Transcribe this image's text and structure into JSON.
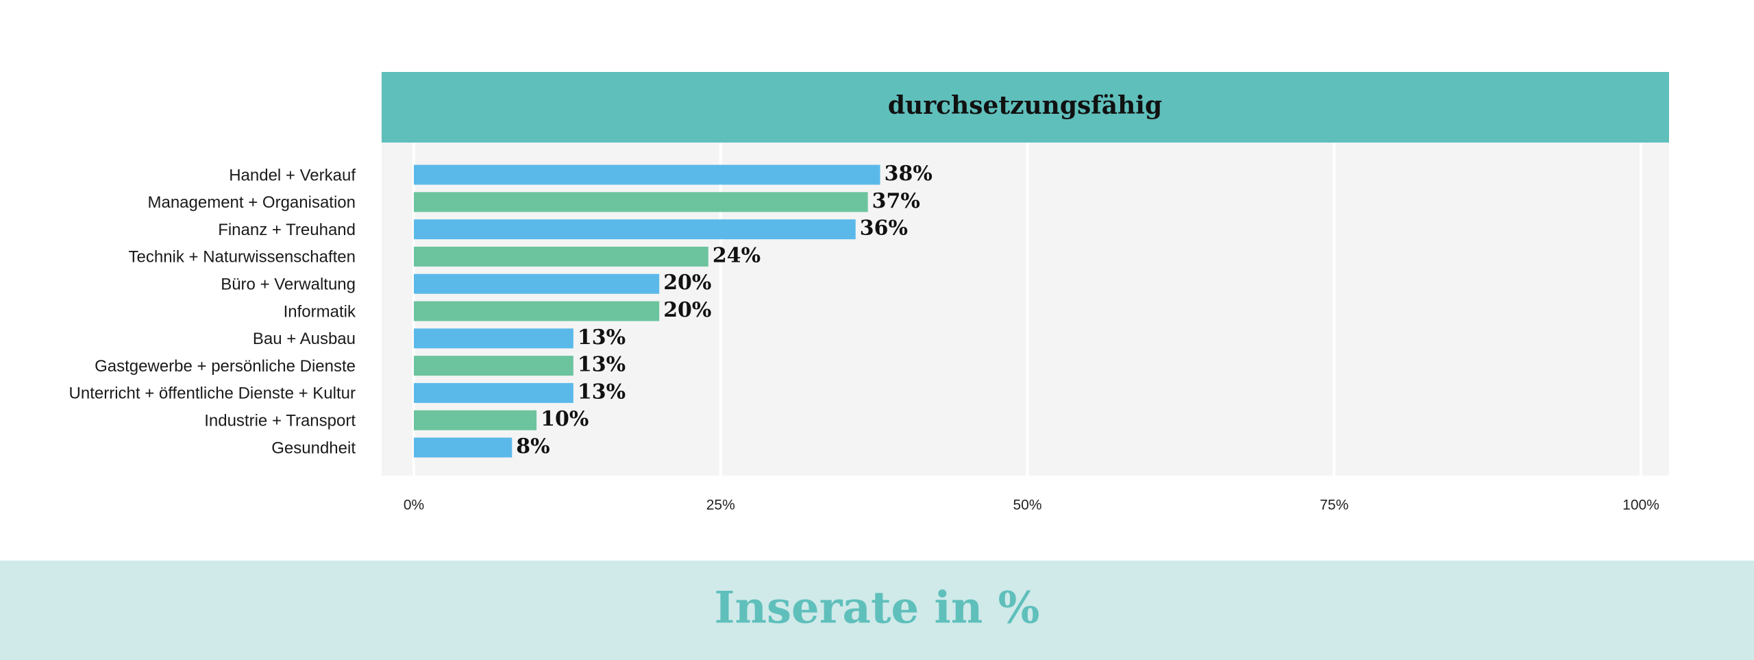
{
  "chart_data": {
    "type": "bar",
    "orientation": "horizontal",
    "title": "durchsetzungsfähig",
    "xlabel": "Inserate in %",
    "categories": [
      "Handel + Verkauf",
      "Management + Organisation",
      "Finanz + Treuhand",
      "Technik + Naturwissenschaften",
      "Büro + Verwaltung",
      "Informatik",
      "Bau + Ausbau",
      "Gastgewerbe + persönliche Dienste",
      "Unterricht + öffentliche Dienste + Kultur",
      "Industrie + Transport",
      "Gesundheit"
    ],
    "values": [
      38,
      37,
      36,
      24,
      20,
      20,
      13,
      13,
      13,
      10,
      8
    ],
    "value_labels": [
      "38%",
      "37%",
      "36%",
      "24%",
      "20%",
      "20%",
      "13%",
      "13%",
      "13%",
      "10%",
      "8%"
    ],
    "colors": [
      "#5bb9ea",
      "#6cc49f",
      "#5bb9ea",
      "#6cc49f",
      "#5bb9ea",
      "#6cc49f",
      "#5bb9ea",
      "#6cc49f",
      "#5bb9ea",
      "#6cc49f",
      "#5bb9ea"
    ],
    "xlim": [
      0,
      100
    ],
    "xticks": [
      {
        "value": 0,
        "label": "0%"
      },
      {
        "value": 25,
        "label": "25%"
      },
      {
        "value": 50,
        "label": "50%"
      },
      {
        "value": 75,
        "label": "75%"
      },
      {
        "value": 100,
        "label": "100%"
      }
    ],
    "grid": true
  }
}
